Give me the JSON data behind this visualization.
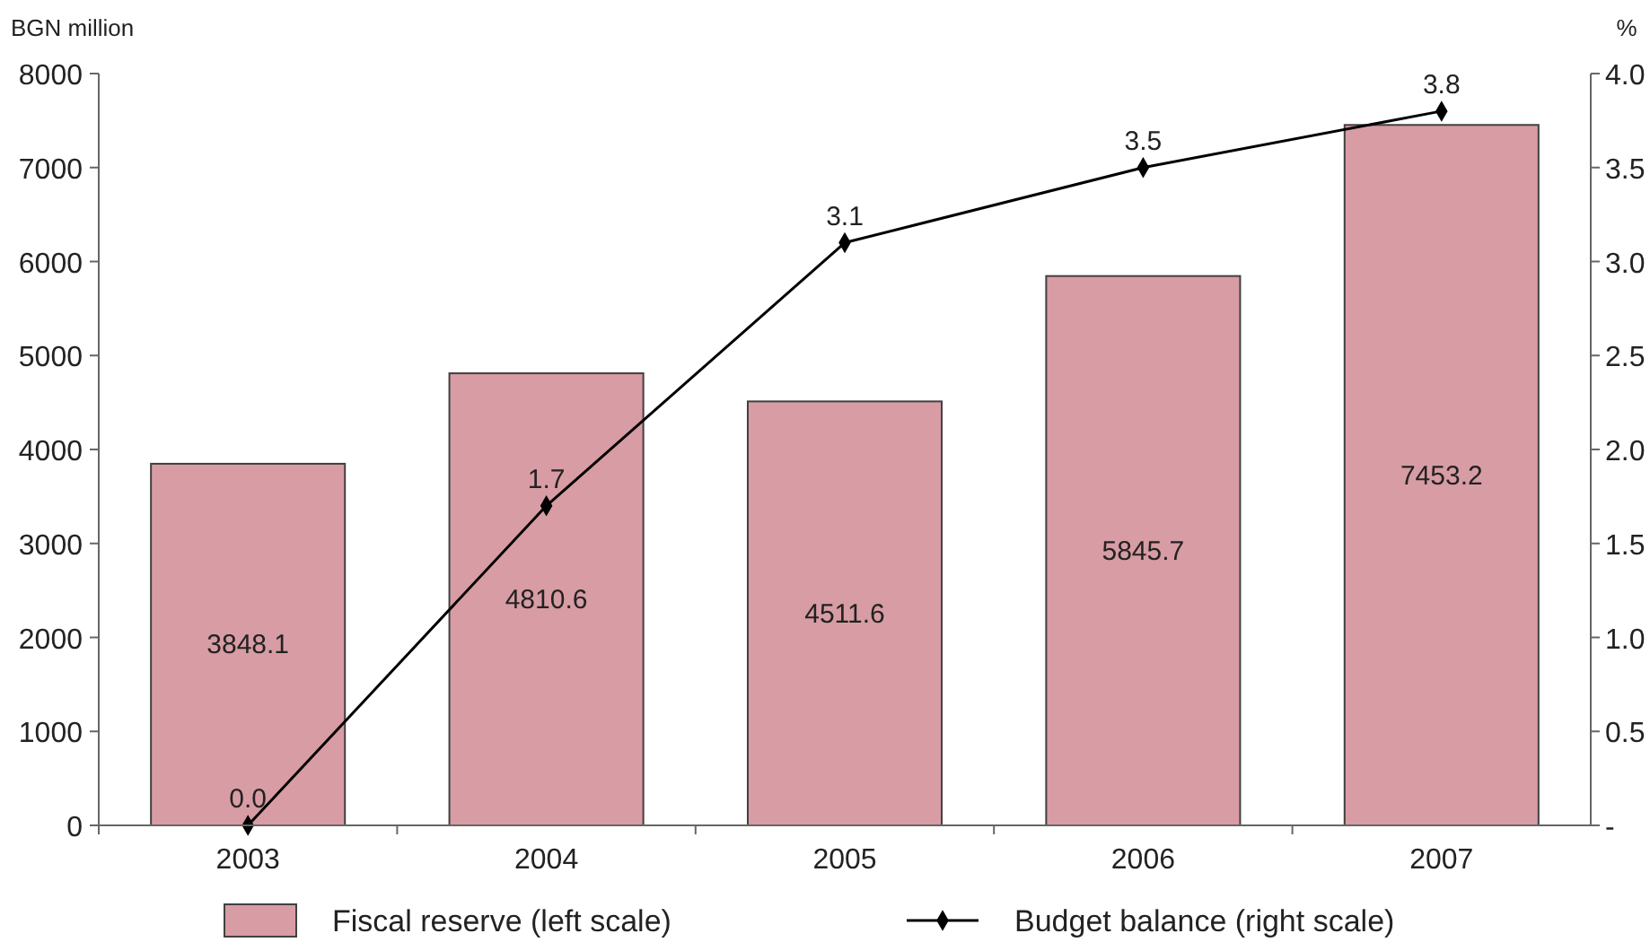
{
  "chart_data": {
    "type": "bar",
    "ylabel": "BGN million",
    "y2label": "%",
    "categories": [
      "2003",
      "2004",
      "2005",
      "2006",
      "2007"
    ],
    "series": [
      {
        "name": "Fiscal reserve (left scale)",
        "color": "#d89ca4",
        "values": [
          3848.1,
          4810.6,
          4511.6,
          5845.7,
          7453.2
        ],
        "value_labels": [
          "3848.1",
          "4810.6",
          "4511.6",
          "5845.7",
          "7453.2"
        ]
      },
      {
        "name": "Budget balance (right scale)",
        "type": "line",
        "axis": "y2",
        "color": "#000000",
        "marker": "diamond",
        "values": [
          0.0,
          1.7,
          3.1,
          3.5,
          3.8
        ],
        "value_labels": [
          "0.0",
          "1.7",
          "3.1",
          "3.5",
          "3.8"
        ]
      }
    ],
    "ylim": [
      0,
      8000
    ],
    "yticks": [
      0,
      1000,
      2000,
      3000,
      4000,
      5000,
      6000,
      7000,
      8000
    ],
    "y2lim": [
      0,
      4
    ],
    "y2ticks": [
      {
        "value": 0,
        "label": "-"
      },
      {
        "value": 0.5,
        "label": "0.5"
      },
      {
        "value": 1,
        "label": "1.0"
      },
      {
        "value": 1.5,
        "label": "1.5"
      },
      {
        "value": 2,
        "label": "2.0"
      },
      {
        "value": 2.5,
        "label": "2.5"
      },
      {
        "value": 3,
        "label": "3.0"
      },
      {
        "value": 3.5,
        "label": "3.5"
      },
      {
        "value": 4,
        "label": "4.0"
      }
    ],
    "grid": false,
    "legend": "bottom"
  }
}
